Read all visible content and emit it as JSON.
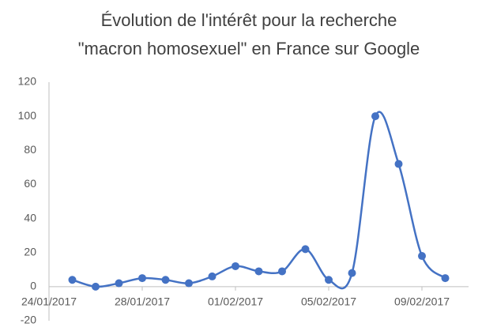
{
  "chart_data": {
    "type": "line",
    "title": [
      "Évolution de l'intérêt pour la recherche",
      "\"macron homosexuel\" en France sur Google"
    ],
    "x": [
      "25/01/2017",
      "26/01/2017",
      "27/01/2017",
      "28/01/2017",
      "29/01/2017",
      "30/01/2017",
      "31/01/2017",
      "01/02/2017",
      "02/02/2017",
      "03/02/2017",
      "04/02/2017",
      "05/02/2017",
      "06/02/2017",
      "07/02/2017",
      "08/02/2017",
      "09/02/2017",
      "10/02/2017"
    ],
    "series": [
      {
        "color": "#4472c4",
        "values": [
          4,
          0,
          2,
          5,
          4,
          2,
          6,
          12,
          9,
          9,
          22,
          4,
          8,
          100,
          72,
          18,
          5
        ]
      }
    ],
    "xlim": [
      "24/01/2017",
      "11/02/2017"
    ],
    "xticks": [
      "24/01/2017",
      "28/01/2017",
      "01/02/2017",
      "05/02/2017",
      "09/02/2017"
    ],
    "ylim": [
      -20,
      120
    ],
    "yticks": [
      -20,
      0,
      20,
      40,
      60,
      80,
      100,
      120
    ],
    "smooth": true,
    "markers": true
  }
}
